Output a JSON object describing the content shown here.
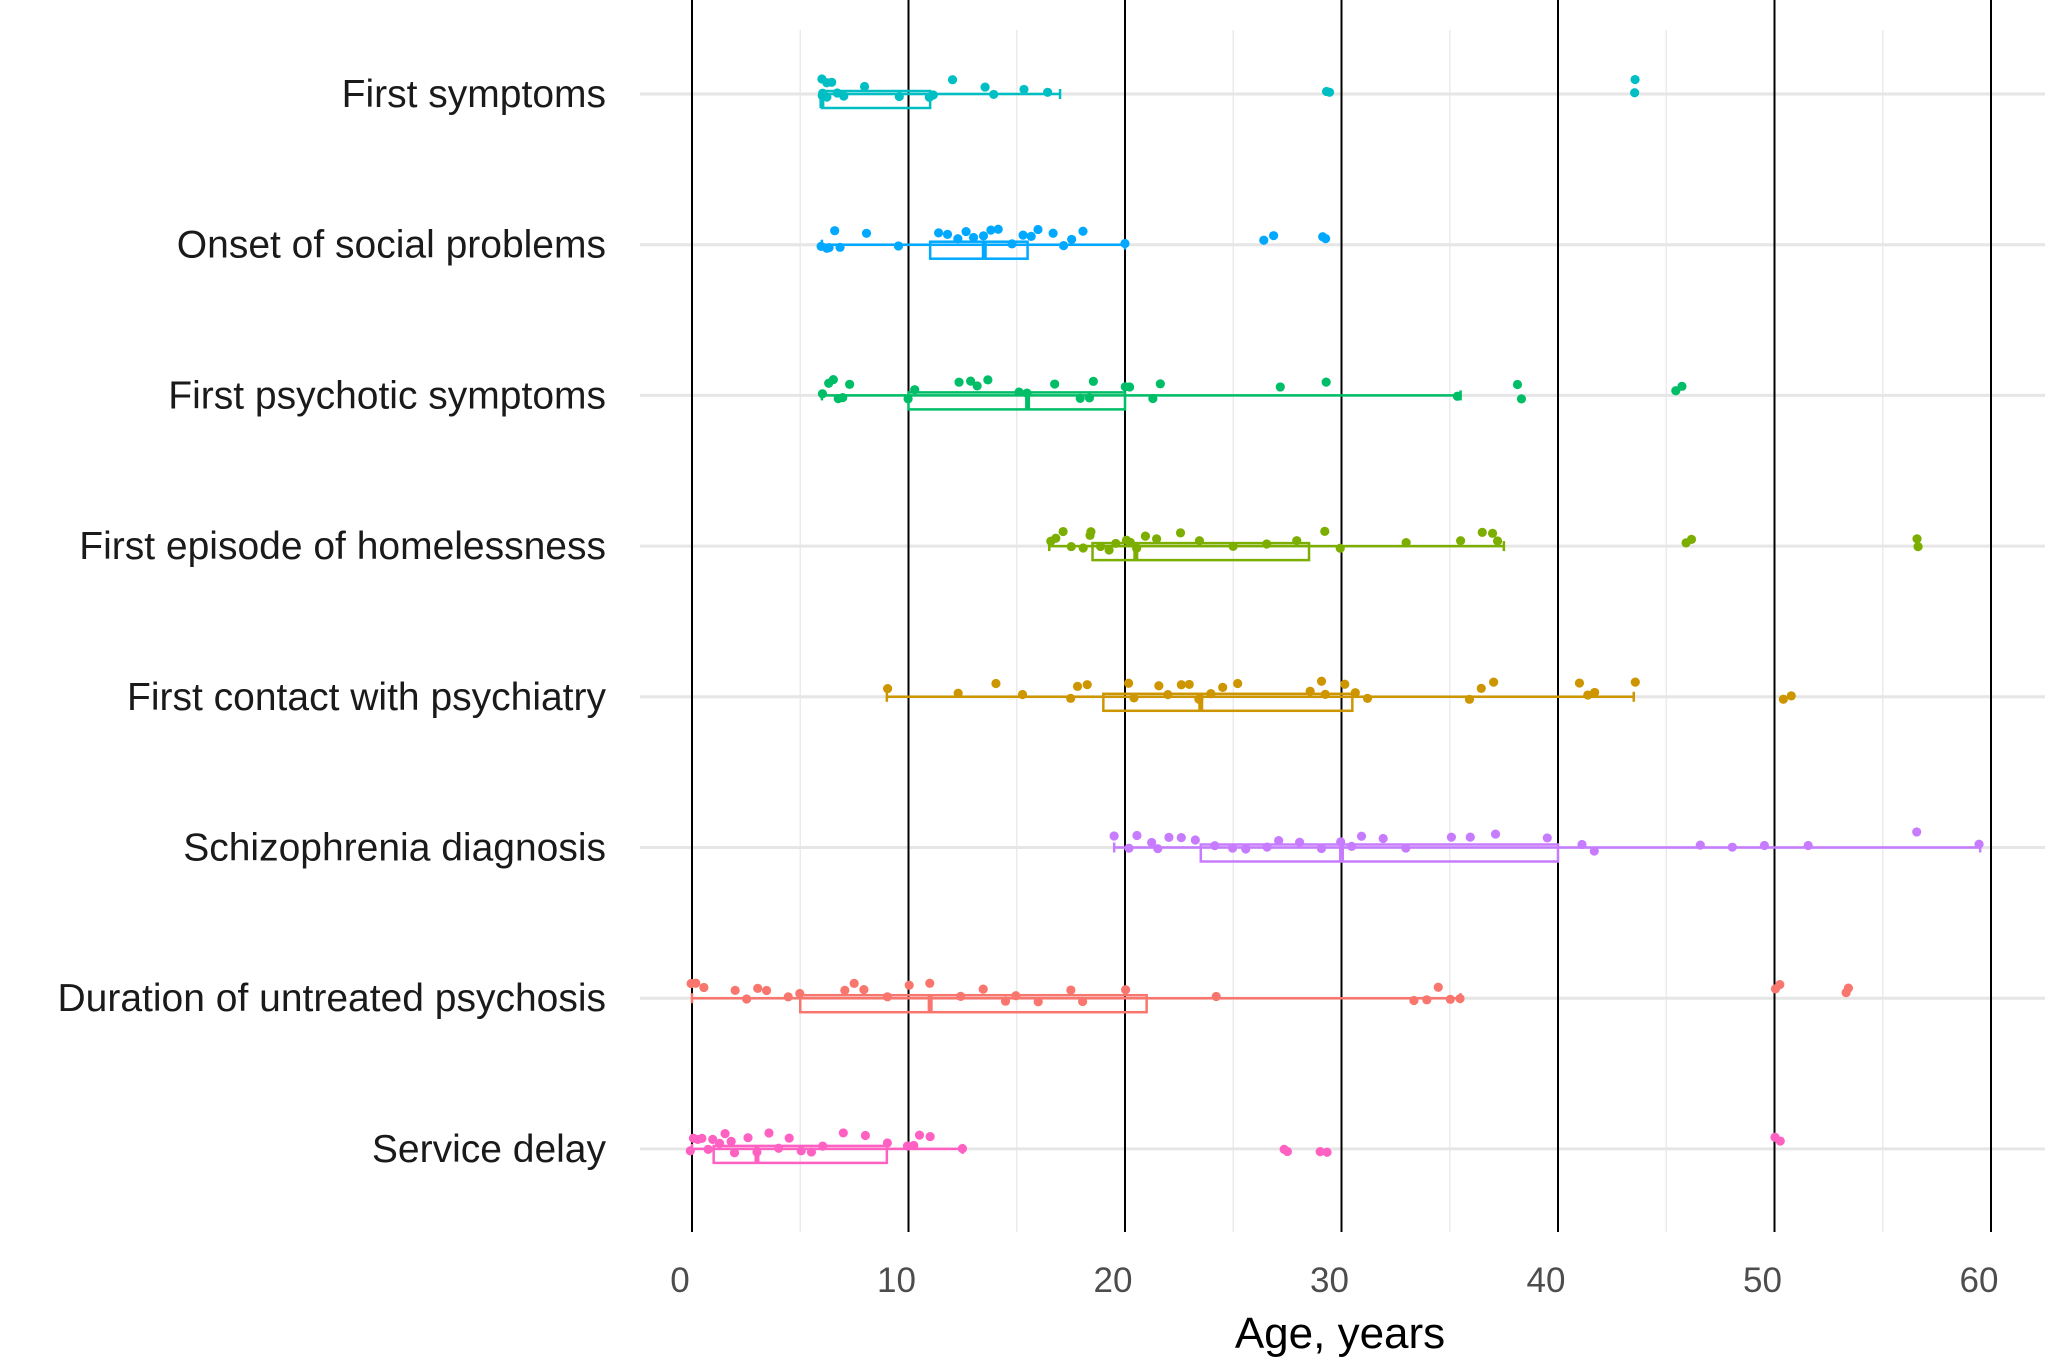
{
  "chart_data": {
    "type": "scatter",
    "subtype": "jittered dot plot with box-plot summaries",
    "title": "",
    "xlabel": "Age, years",
    "ylabel": "",
    "xlim": [
      -0.5,
      62.5
    ],
    "x_ticks": [
      0,
      10,
      20,
      30,
      40,
      50,
      60
    ],
    "x_tick_labels": [
      "0",
      "10",
      "20",
      "30",
      "40",
      "50",
      "60"
    ],
    "reference_lines": [
      0,
      10,
      20,
      30,
      40,
      50,
      60
    ],
    "legend": "none",
    "categories": [
      "First symptoms",
      "Onset of social problems",
      "First psychotic symptoms",
      "First episode of homelessness",
      "First contact with psychiatry",
      "Schizophrenia diagnosis",
      "Duration of untreated psychosis",
      "Service delay"
    ],
    "series": [
      {
        "name": "First symptoms",
        "color": "#00BFC4",
        "box": {
          "lower_whisker": 6,
          "q1": 6,
          "median": 6,
          "q3": 11,
          "upper_whisker": 17
        },
        "points": [
          6,
          6,
          6,
          6.2,
          6.3,
          6.5,
          6.8,
          7,
          8,
          9.5,
          11,
          11.2,
          12,
          13.5,
          14,
          15.3,
          16.5,
          29.3,
          29.5,
          43.5,
          43.5
        ]
      },
      {
        "name": "Onset of social problems",
        "color": "#00A9FF",
        "box": {
          "lower_whisker": 6,
          "q1": 11,
          "median": 13.5,
          "q3": 15.5,
          "upper_whisker": 20
        },
        "points": [
          6,
          6.2,
          6.4,
          6.6,
          6.8,
          8,
          9.5,
          11.3,
          11.8,
          12.3,
          12.6,
          13,
          13.4,
          13.8,
          14.2,
          14.8,
          15.3,
          15.6,
          16,
          16.6,
          17.1,
          17.6,
          18.1,
          20,
          26.5,
          26.8,
          29.2,
          29.3
        ]
      },
      {
        "name": "First psychotic symptoms",
        "color": "#00BE67",
        "box": {
          "lower_whisker": 6,
          "q1": 10,
          "median": 15.5,
          "q3": 20,
          "upper_whisker": 35.5
        },
        "points": [
          6.1,
          6.3,
          6.5,
          6.8,
          7,
          7.3,
          10,
          10.3,
          12.3,
          12.8,
          13.2,
          13.6,
          15.2,
          15.5,
          16.8,
          18,
          18.3,
          18.6,
          20,
          20.3,
          21.2,
          21.6,
          27.2,
          29.2,
          35.3,
          38.2,
          38.3,
          45.5,
          45.7
        ]
      },
      {
        "name": "First episode of homelessness",
        "color": "#7CAE00",
        "box": {
          "lower_whisker": 16.5,
          "q1": 18.5,
          "median": 20.5,
          "q3": 28.5,
          "upper_whisker": 37.5
        },
        "points": [
          16.5,
          16.8,
          17.2,
          17.6,
          18,
          18.3,
          18.5,
          18.8,
          19.2,
          19.6,
          20,
          20.3,
          20.6,
          21,
          21.5,
          22.5,
          23.5,
          25,
          26.5,
          28,
          29.3,
          30,
          33,
          35.5,
          36.5,
          37,
          37.3,
          46,
          46.2,
          56.5,
          56.7
        ]
      },
      {
        "name": "First contact with psychiatry",
        "color": "#CD9600",
        "box": {
          "lower_whisker": 9,
          "q1": 19,
          "median": 23.5,
          "q3": 30.5,
          "upper_whisker": 43.5
        },
        "points": [
          9,
          12.3,
          14,
          15.2,
          17.5,
          17.8,
          18.2,
          20.2,
          20.5,
          21.5,
          22,
          22.6,
          23,
          23.5,
          24,
          24.5,
          25.2,
          28.5,
          29,
          29.3,
          30.2,
          30.6,
          31.2,
          36,
          36.5,
          37,
          41,
          41.3,
          41.6,
          43.5,
          50.5,
          50.7
        ]
      },
      {
        "name": "Schizophrenia diagnosis",
        "color": "#C77CFF",
        "box": {
          "lower_whisker": 19.5,
          "q1": 23.5,
          "median": 30,
          "q3": 40,
          "upper_whisker": 59.5
        },
        "points": [
          19.5,
          20.2,
          20.6,
          21.2,
          21.6,
          22.1,
          22.6,
          23.2,
          24.2,
          25,
          25.5,
          26.5,
          27.1,
          28,
          29.1,
          30,
          30.4,
          31,
          32,
          33,
          35.1,
          36,
          37.1,
          39.5,
          41.2,
          41.6,
          46.5,
          48,
          49.5,
          51.5,
          56.5,
          59.5
        ]
      },
      {
        "name": "Duration of untreated psychosis",
        "color": "#F8766D",
        "box": {
          "lower_whisker": 0,
          "q1": 5,
          "median": 11,
          "q3": 21,
          "upper_whisker": 35.5
        },
        "points": [
          0,
          0.2,
          0.5,
          2,
          2.5,
          3,
          3.5,
          4.5,
          5,
          7,
          7.5,
          8,
          9,
          10,
          11,
          12.5,
          13.5,
          14.5,
          15,
          16,
          17.5,
          18,
          20,
          24.3,
          33.3,
          34,
          34.5,
          35,
          35.5,
          50,
          50.2,
          53.3,
          53.4
        ]
      },
      {
        "name": "Service delay",
        "color": "#FF61C3",
        "box": {
          "lower_whisker": 0,
          "q1": 1,
          "median": 3,
          "q3": 9,
          "upper_whisker": 12.5
        },
        "points": [
          0,
          0.1,
          0.3,
          0.5,
          0.8,
          1,
          1.2,
          1.5,
          1.8,
          2,
          2.5,
          3,
          3.5,
          4,
          4.5,
          5,
          5.5,
          6,
          7,
          8,
          9,
          10,
          10.2,
          10.5,
          11,
          12.5,
          27.3,
          27.5,
          29.1,
          29.3,
          50,
          50.2
        ]
      }
    ]
  }
}
